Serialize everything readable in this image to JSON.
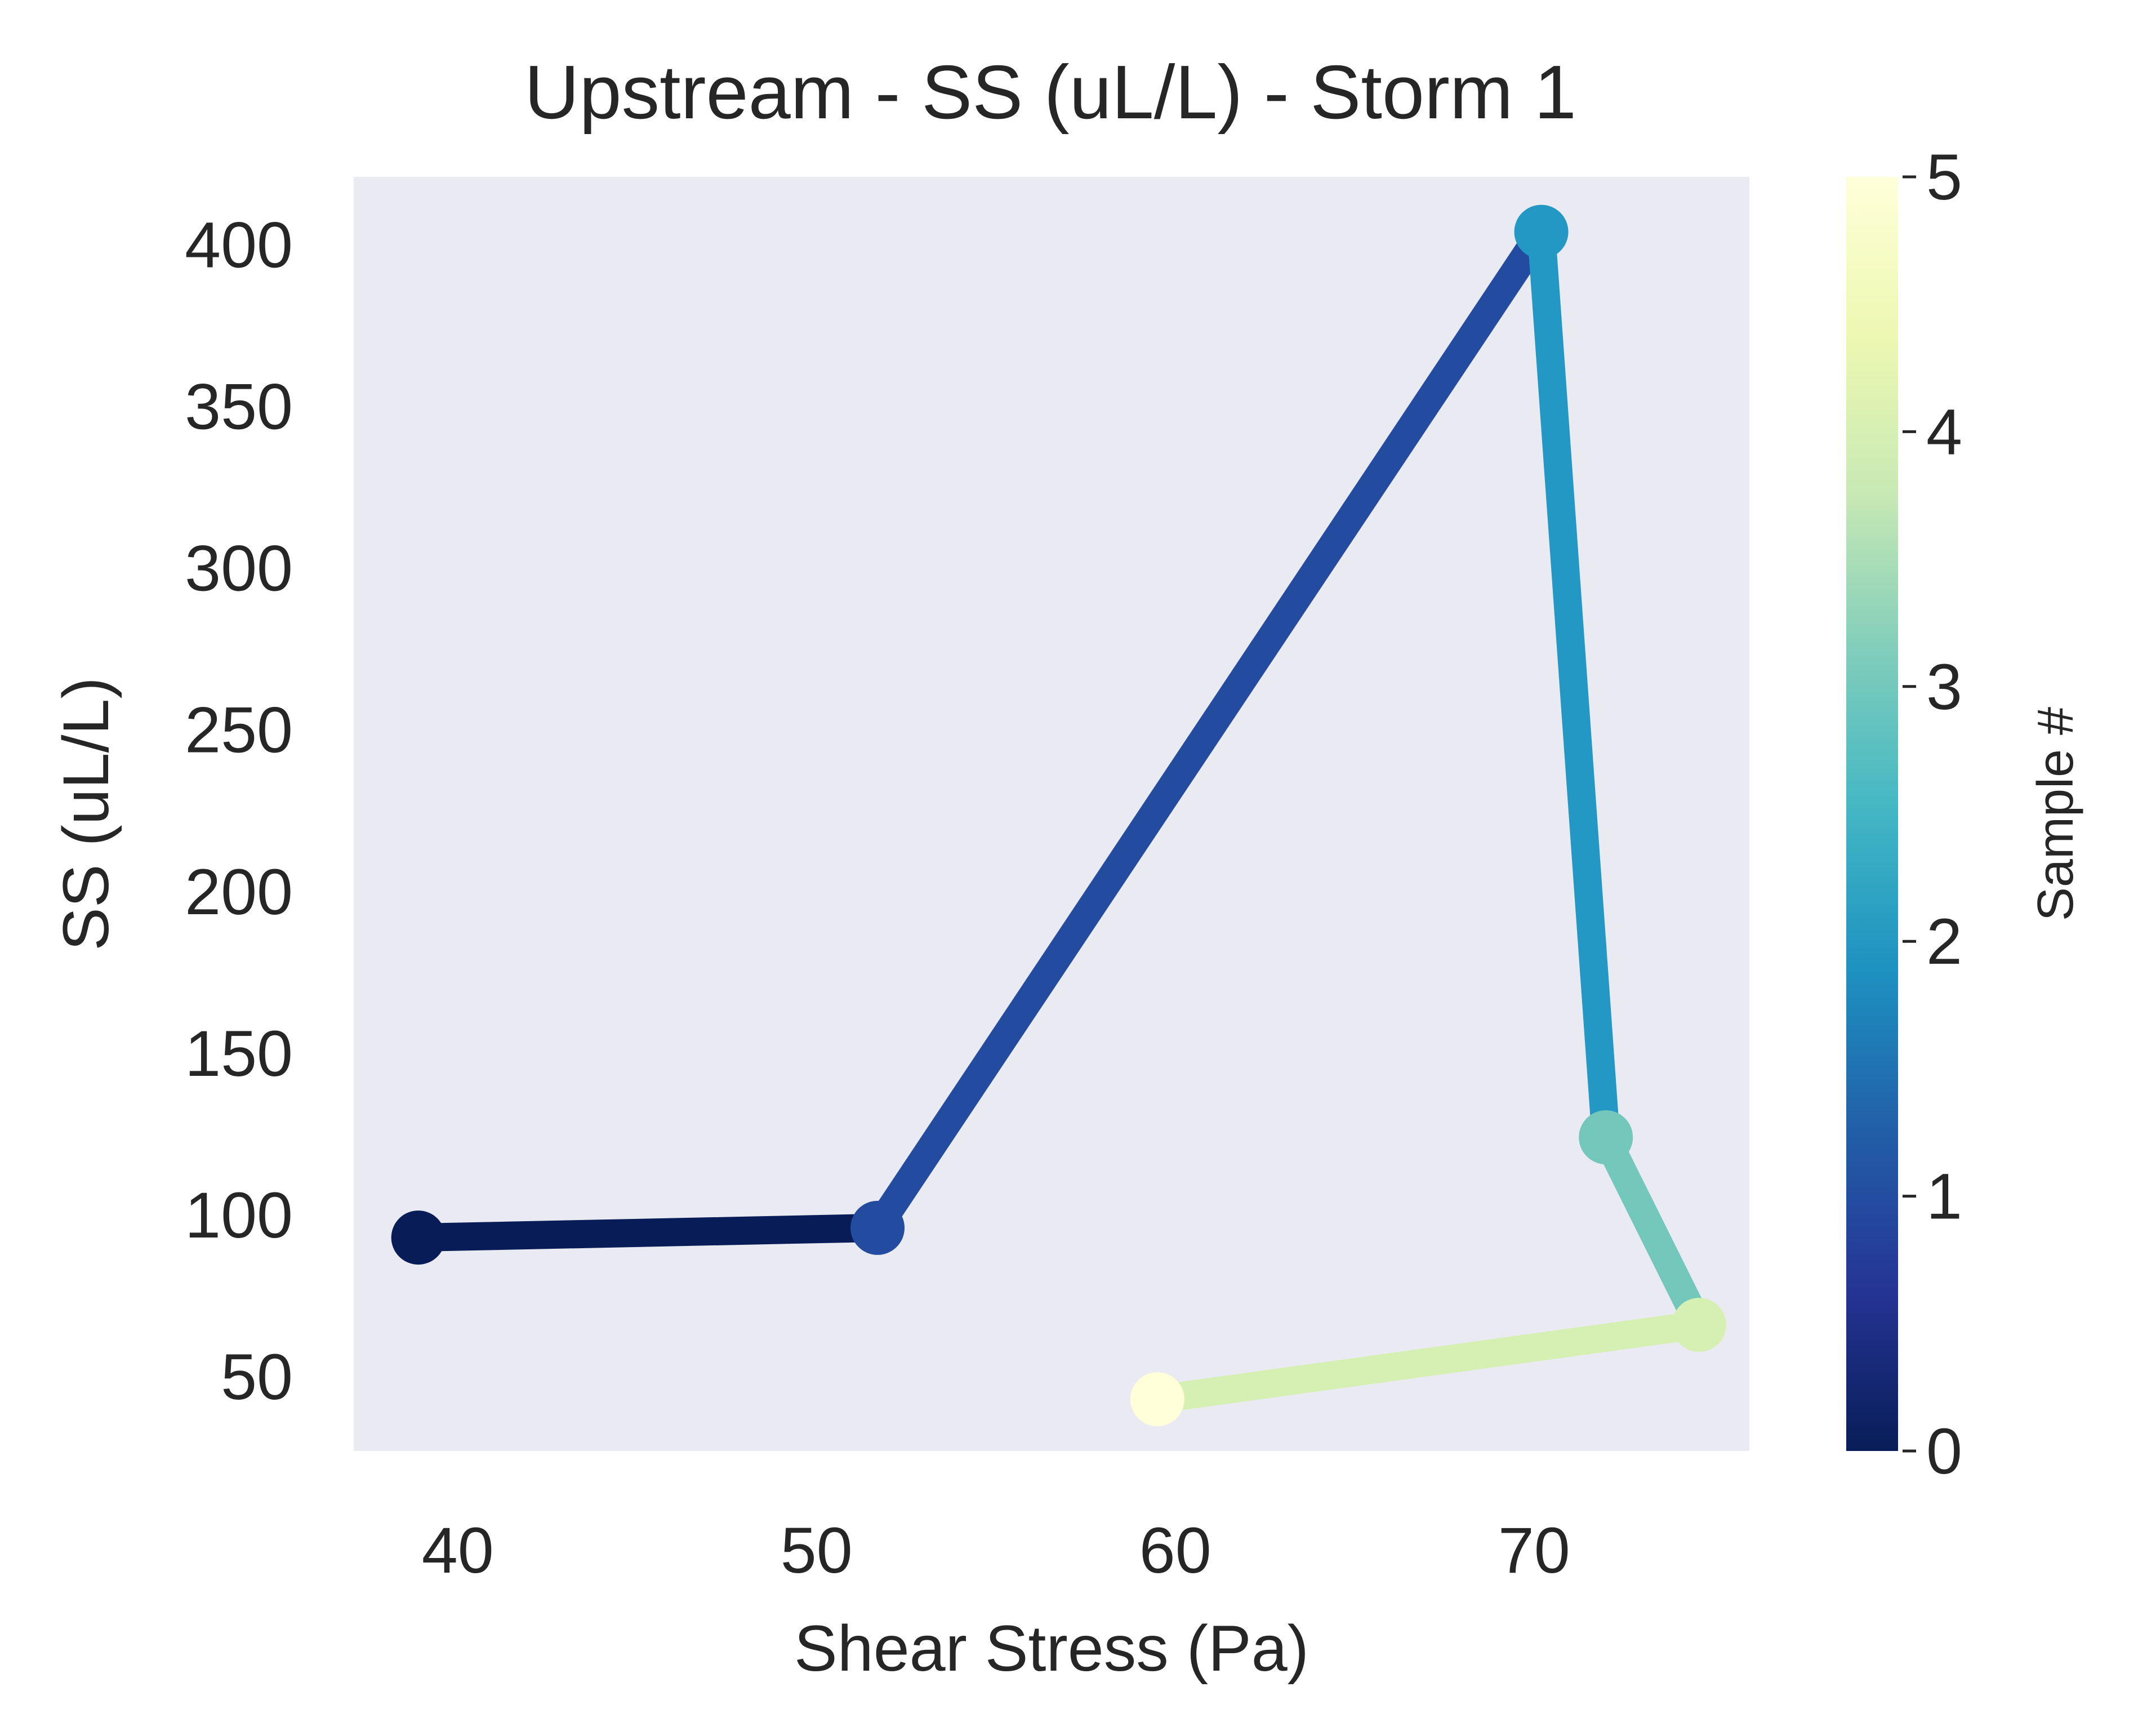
{
  "chart_data": {
    "type": "line",
    "title": "Upstream - SS (uL/L) - Storm 1",
    "xlabel": "Shear Stress (Pa)",
    "ylabel": "SS (uL/L)",
    "xlim": [
      37.1,
      76.0
    ],
    "ylim": [
      27,
      421
    ],
    "xticks": [
      40,
      50,
      60,
      70
    ],
    "yticks": [
      50,
      100,
      150,
      200,
      250,
      300,
      350,
      400
    ],
    "grid": false,
    "series": [
      {
        "points": [
          {
            "x": 38.9,
            "y": 93,
            "sample": 0
          },
          {
            "x": 51.7,
            "y": 96,
            "sample": 1
          },
          {
            "x": 70.2,
            "y": 404,
            "sample": 2
          },
          {
            "x": 72.0,
            "y": 124,
            "sample": 3
          },
          {
            "x": 74.6,
            "y": 66,
            "sample": 4
          },
          {
            "x": 59.5,
            "y": 43,
            "sample": 5
          }
        ]
      }
    ],
    "colorbar": {
      "label": "Sample #",
      "range": [
        0,
        5
      ],
      "ticks": [
        0,
        1,
        2,
        3,
        4,
        5
      ],
      "colormap": "YlGnBu_r",
      "stops": [
        "#081d58",
        "#253494",
        "#225ea8",
        "#1d91c0",
        "#41b6c4",
        "#7fcdbb",
        "#c7e9b4",
        "#edf8b1",
        "#ffffd9"
      ]
    },
    "colors": {
      "plot_background": "#eaeaf2",
      "segment_colors": [
        "#081d58",
        "#234ba0",
        "#2498c4",
        "#74c8bb",
        "#d5f0b2"
      ],
      "marker_colors": [
        "#081d58",
        "#234ba0",
        "#2498c4",
        "#74c8bb",
        "#d5f0b2",
        "#ffffd9"
      ]
    }
  }
}
